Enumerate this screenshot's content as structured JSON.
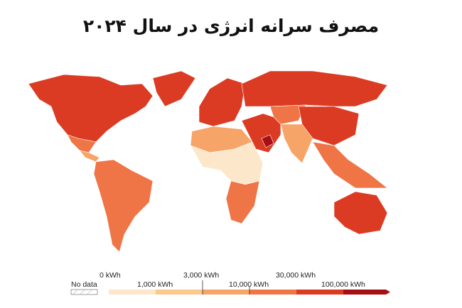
{
  "title": "مصرف سرانه انرژی در سال ۲۰۲۴",
  "legend": {
    "no_data": "No data",
    "labels_top": [
      "0 kWh",
      "3,000 kWh",
      "30,000 kWh"
    ],
    "labels_bottom": [
      "1,000 kWh",
      "10,000 kWh",
      "100,000 kWh"
    ],
    "bins": [
      {
        "range": "0–1,000 kWh",
        "color": "#fde7cb"
      },
      {
        "range": "1,000–3,000 kWh",
        "color": "#fbc890"
      },
      {
        "range": "3,000–10,000 kWh",
        "color": "#f7a468"
      },
      {
        "range": "10,000–30,000 kWh",
        "color": "#ef7446"
      },
      {
        "range": "30,000–100,000 kWh",
        "color": "#dc3b23"
      },
      {
        "range": ">100,000 kWh",
        "color": "#a60f14"
      }
    ]
  },
  "regions": [
    {
      "name": "North America",
      "bin": 4
    },
    {
      "name": "Mexico",
      "bin": 3
    },
    {
      "name": "Central America",
      "bin": 2
    },
    {
      "name": "South America",
      "bin": 3
    },
    {
      "name": "Greenland",
      "bin": 4
    },
    {
      "name": "Europe",
      "bin": 4
    },
    {
      "name": "Russia",
      "bin": 4
    },
    {
      "name": "North Africa",
      "bin": 2
    },
    {
      "name": "Sub-Saharan Africa",
      "bin": 0
    },
    {
      "name": "Southern Africa",
      "bin": 3
    },
    {
      "name": "Middle East",
      "bin": 4
    },
    {
      "name": "Central Asia",
      "bin": 3
    },
    {
      "name": "South Asia",
      "bin": 2
    },
    {
      "name": "China",
      "bin": 4
    },
    {
      "name": "Southeast Asia",
      "bin": 3
    },
    {
      "name": "Australia",
      "bin": 4
    },
    {
      "name": "Gulf states",
      "bin": 5
    }
  ]
}
